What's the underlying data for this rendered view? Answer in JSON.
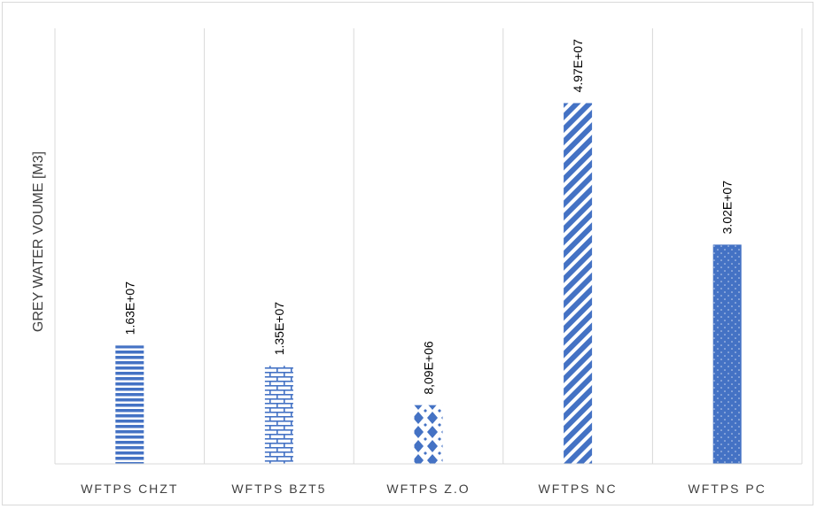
{
  "chart_data": {
    "type": "bar",
    "title": "",
    "xlabel": "",
    "ylabel": "GREY WATER VOUME [M3]",
    "categories": [
      "WFTPS CHZT",
      "WFTPS BZT5",
      "WFTPS Z.O",
      "WFTPS NC",
      "WFTPS PC"
    ],
    "values": [
      16300000,
      13500000,
      8090000,
      49700000,
      30200000
    ],
    "data_labels": [
      "1.63E+07",
      "1.35E+07",
      "8,09E+06",
      "4.97E+07",
      "3.02E+07"
    ],
    "patterns": [
      "horizontal-stripes",
      "brick",
      "diamond",
      "diagonal-stripes",
      "dots"
    ],
    "ylim": [
      0,
      60000000
    ],
    "grid": "vertical-lines",
    "legend": "none",
    "bar_color": "#4472c4",
    "grid_color": "#d9d9d9",
    "axis_color": "#d9d9d9"
  }
}
